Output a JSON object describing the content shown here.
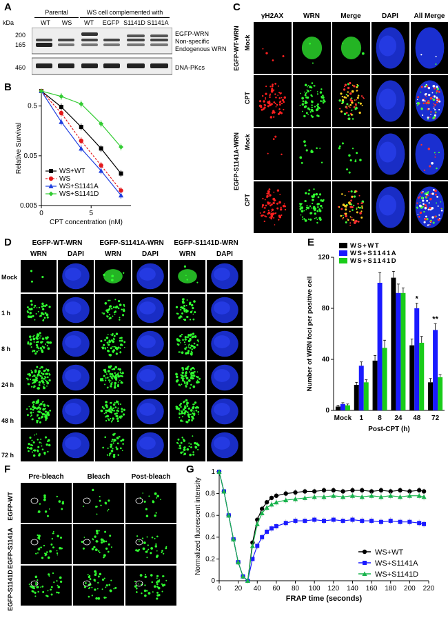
{
  "panels": {
    "A": "A",
    "B": "B",
    "C": "C",
    "D": "D",
    "E": "E",
    "F": "F",
    "G": "G"
  },
  "panelA": {
    "kda": "kDa",
    "group_parental": "Parental",
    "group_ws": "WS cell complemented with",
    "lanes": [
      "WT",
      "WS",
      "WT",
      "EGFP",
      "S1141D",
      "S1141A"
    ],
    "markers": [
      "200",
      "165",
      "460"
    ],
    "band_labels": [
      "EGFP-WRN",
      "Non-specific",
      "Endogenous WRN",
      "DNA-PKcs"
    ]
  },
  "panelB": {
    "ylabel": "Relative Survival",
    "xlabel": "CPT concentration (nM)"
  },
  "panelC": {
    "columns": [
      "γH2AX",
      "WRN",
      "Merge",
      "DAPI",
      "All Merge"
    ],
    "groups": [
      "EGFP-WT-WRN",
      "EGFP-S1141A-WRN"
    ],
    "rows": [
      "Mock",
      "CPT",
      "Mock",
      "CPT"
    ]
  },
  "panelD": {
    "groups": [
      "EGFP-WT-WRN",
      "EGFP-S1141A-WRN",
      "EGFP-S1141D-WRN"
    ],
    "subcols": [
      "WRN",
      "DAPI"
    ],
    "rows": [
      "Mock",
      "1 h",
      "8 h",
      "24 h",
      "48 h",
      "72 h"
    ]
  },
  "panelF": {
    "columns": [
      "Pre-bleach",
      "Bleach",
      "Post-bleach"
    ],
    "rows": [
      "EGFP-WT",
      "EGFP-S1141A",
      "EGFP-S1141D"
    ]
  },
  "chart_data": [
    {
      "type": "line",
      "panel": "B",
      "xlabel": "CPT concentration (nM)",
      "ylabel": "Relative Survival",
      "yscale": "log",
      "ylim": [
        0.005,
        1
      ],
      "xlim": [
        0,
        9
      ],
      "yticks": [
        "0.005",
        "0.05",
        "0.5"
      ],
      "xticks": [
        "0",
        "5"
      ],
      "legend_position": "bottom-left",
      "x": [
        0,
        2,
        4,
        6,
        8
      ],
      "series": [
        {
          "name": "WS+WT",
          "color": "#000000",
          "marker": "square",
          "values": [
            1.0,
            0.48,
            0.19,
            0.07,
            0.022
          ]
        },
        {
          "name": "WS",
          "color": "#e41a1c",
          "marker": "circle",
          "dashed": true,
          "values": [
            1.0,
            0.36,
            0.1,
            0.032,
            0.01
          ]
        },
        {
          "name": "WS+S1141A",
          "color": "#1f3fe0",
          "marker": "triangle",
          "values": [
            1.0,
            0.24,
            0.07,
            0.025,
            0.008
          ]
        },
        {
          "name": "WS+S1141D",
          "color": "#33cc33",
          "marker": "diamond",
          "values": [
            1.0,
            0.78,
            0.55,
            0.22,
            0.075
          ]
        }
      ]
    },
    {
      "type": "bar",
      "panel": "E",
      "xlabel": "Post-CPT (h)",
      "ylabel": "Number of WRN foci per positive cell",
      "ylim": [
        0,
        120
      ],
      "yticks": [
        "0",
        "40",
        "80",
        "120"
      ],
      "categories": [
        "Mock",
        "1",
        "8",
        "24",
        "48",
        "72"
      ],
      "legend_position": "top-left",
      "annotations": [
        {
          "category": "48",
          "text": "*"
        },
        {
          "category": "72",
          "text": "**"
        }
      ],
      "series": [
        {
          "name": "WS+WT",
          "color": "#000000",
          "values": [
            3,
            20,
            39,
            104,
            51,
            22
          ],
          "errors": [
            1,
            2,
            4,
            5,
            5,
            3
          ]
        },
        {
          "name": "WS+S1141A",
          "color": "#1a1aff",
          "values": [
            5,
            35,
            100,
            92,
            80,
            63
          ],
          "errors": [
            1,
            3,
            8,
            7,
            4,
            5
          ]
        },
        {
          "name": "WS+S1141D",
          "color": "#19cc19",
          "values": [
            4,
            22,
            49,
            92,
            53,
            26
          ],
          "errors": [
            1,
            2,
            6,
            4,
            5,
            2
          ]
        }
      ]
    },
    {
      "type": "line",
      "panel": "G",
      "xlabel": "FRAP time (seconds)",
      "ylabel": "Normalized fluorescent intensity",
      "ylim": [
        0,
        1
      ],
      "xlim": [
        0,
        220
      ],
      "yticks": [
        "0",
        "0.2",
        "0.4",
        "0.6",
        "0.8",
        "1"
      ],
      "xticks": [
        "0",
        "20",
        "40",
        "60",
        "80",
        "100",
        "120",
        "140",
        "160",
        "180",
        "200",
        "220"
      ],
      "legend_position": "bottom-right",
      "x": [
        0,
        5,
        10,
        15,
        20,
        25,
        30,
        35,
        40,
        45,
        50,
        55,
        60,
        70,
        80,
        90,
        100,
        110,
        120,
        130,
        140,
        150,
        160,
        170,
        180,
        190,
        200,
        210,
        215
      ],
      "series": [
        {
          "name": "WS+WT",
          "color": "#000000",
          "marker": "circle",
          "values": [
            1.0,
            0.82,
            0.6,
            0.38,
            0.17,
            0.04,
            0.0,
            0.35,
            0.56,
            0.66,
            0.72,
            0.76,
            0.78,
            0.8,
            0.81,
            0.82,
            0.82,
            0.83,
            0.83,
            0.82,
            0.83,
            0.83,
            0.82,
            0.83,
            0.82,
            0.83,
            0.82,
            0.83,
            0.82
          ]
        },
        {
          "name": "WS+S1141A",
          "color": "#1a1aff",
          "marker": "square",
          "values": [
            1.0,
            0.82,
            0.6,
            0.38,
            0.17,
            0.04,
            0.0,
            0.2,
            0.32,
            0.4,
            0.45,
            0.48,
            0.5,
            0.53,
            0.55,
            0.55,
            0.56,
            0.55,
            0.56,
            0.55,
            0.56,
            0.55,
            0.55,
            0.54,
            0.55,
            0.54,
            0.54,
            0.53,
            0.52
          ]
        },
        {
          "name": "WS+S1141D",
          "color": "#19b34d",
          "marker": "triangle",
          "values": [
            1.0,
            0.82,
            0.6,
            0.38,
            0.17,
            0.04,
            0.0,
            0.32,
            0.52,
            0.62,
            0.67,
            0.7,
            0.72,
            0.74,
            0.75,
            0.76,
            0.77,
            0.77,
            0.78,
            0.77,
            0.78,
            0.77,
            0.78,
            0.77,
            0.78,
            0.77,
            0.78,
            0.78,
            0.77
          ]
        }
      ]
    }
  ]
}
